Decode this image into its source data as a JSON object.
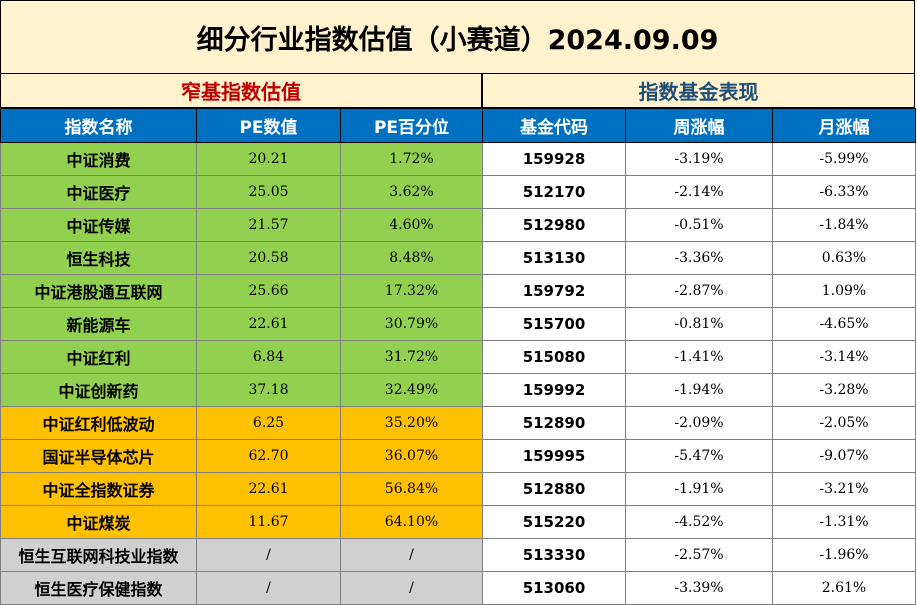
{
  "title": "细分行业指数估值（小赛道）2024.09.09",
  "sections": {
    "left": "窄基指数估值",
    "right": "指数基金表现"
  },
  "headers": [
    "指数名称",
    "PE数值",
    "PE百分位",
    "基金代码",
    "周涨幅",
    "月涨幅"
  ],
  "rows": [
    {
      "name": "中证消费",
      "pe": "20.21",
      "pct": "1.72%",
      "code": "159928",
      "week": "-3.19%",
      "month": "-5.99%",
      "group": "green"
    },
    {
      "name": "中证医疗",
      "pe": "25.05",
      "pct": "3.62%",
      "code": "512170",
      "week": "-2.14%",
      "month": "-6.33%",
      "group": "green"
    },
    {
      "name": "中证传媒",
      "pe": "21.57",
      "pct": "4.60%",
      "code": "512980",
      "week": "-0.51%",
      "month": "-1.84%",
      "group": "green"
    },
    {
      "name": "恒生科技",
      "pe": "20.58",
      "pct": "8.48%",
      "code": "513130",
      "week": "-3.36%",
      "month": "0.63%",
      "group": "green"
    },
    {
      "name": "中证港股通互联网",
      "pe": "25.66",
      "pct": "17.32%",
      "code": "159792",
      "week": "-2.87%",
      "month": "1.09%",
      "group": "green"
    },
    {
      "name": "新能源车",
      "pe": "22.61",
      "pct": "30.79%",
      "code": "515700",
      "week": "-0.81%",
      "month": "-4.65%",
      "group": "green"
    },
    {
      "name": "中证红利",
      "pe": "6.84",
      "pct": "31.72%",
      "code": "515080",
      "week": "-1.41%",
      "month": "-3.14%",
      "group": "green"
    },
    {
      "name": "中证创新药",
      "pe": "37.18",
      "pct": "32.49%",
      "code": "159992",
      "week": "-1.94%",
      "month": "-3.28%",
      "group": "green"
    },
    {
      "name": "中证红利低波动",
      "pe": "6.25",
      "pct": "35.20%",
      "code": "512890",
      "week": "-2.09%",
      "month": "-2.05%",
      "group": "orange"
    },
    {
      "name": "国证半导体芯片",
      "pe": "62.70",
      "pct": "36.07%",
      "code": "159995",
      "week": "-5.47%",
      "month": "-9.07%",
      "group": "orange"
    },
    {
      "name": "中证全指数证券",
      "pe": "22.61",
      "pct": "56.84%",
      "code": "512880",
      "week": "-1.91%",
      "month": "-3.21%",
      "group": "orange"
    },
    {
      "name": "中证煤炭",
      "pe": "11.67",
      "pct": "64.10%",
      "code": "515220",
      "week": "-4.52%",
      "month": "-1.31%",
      "group": "orange"
    },
    {
      "name": "恒生互联网科技业指数",
      "pe": "/",
      "pct": "/",
      "code": "513330",
      "week": "-2.57%",
      "month": "-1.96%",
      "group": "gray"
    },
    {
      "name": "恒生医疗保健指数",
      "pe": "/",
      "pct": "/",
      "code": "513060",
      "week": "-3.39%",
      "month": "2.61%",
      "group": "gray"
    }
  ]
}
